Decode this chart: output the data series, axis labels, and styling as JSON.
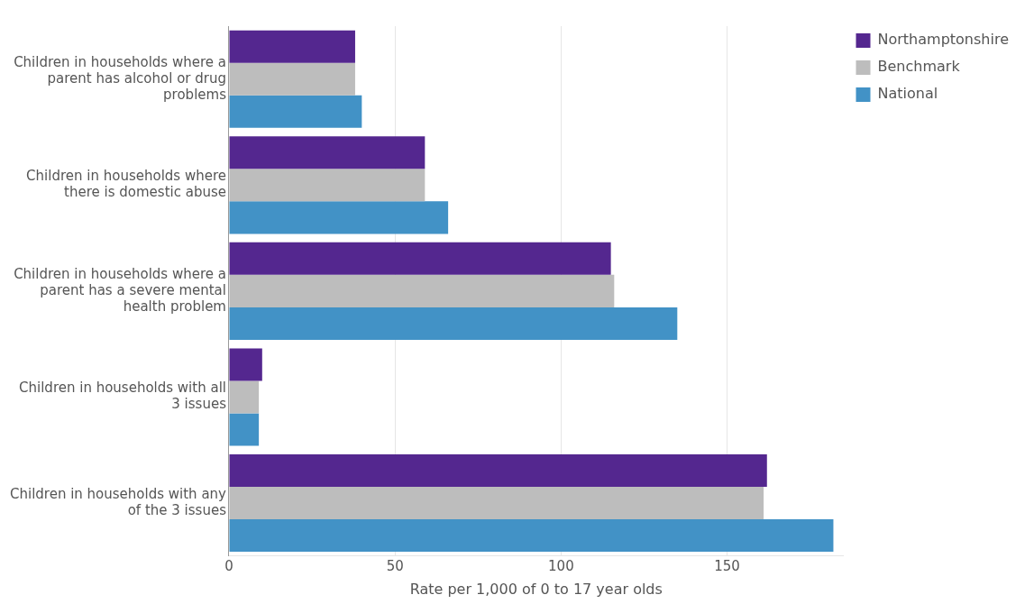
{
  "chart_data": {
    "type": "bar",
    "orientation": "horizontal",
    "categories": [
      "Children in households where a parent has alcohol or drug problems",
      "Children in households where there is domestic abuse",
      "Children in households where a parent has a severe mental health problem",
      "Children in households with all 3 issues",
      "Children in households with any of the 3 issues"
    ],
    "series": [
      {
        "name": "Northamptonshire",
        "color": "#54278f",
        "values": [
          38,
          59,
          115,
          10,
          162
        ]
      },
      {
        "name": "Benchmark",
        "color": "#bdbdbd",
        "values": [
          38,
          59,
          116,
          9,
          161
        ]
      },
      {
        "name": "National",
        "color": "#4292c6",
        "values": [
          40,
          66,
          135,
          9,
          182
        ]
      }
    ],
    "xlabel": "Rate per 1,000 of 0 to 17 year olds",
    "xlim": [
      0,
      185
    ],
    "xticks": [
      0,
      50,
      100,
      150
    ],
    "grid": "x",
    "legend": "top right"
  }
}
